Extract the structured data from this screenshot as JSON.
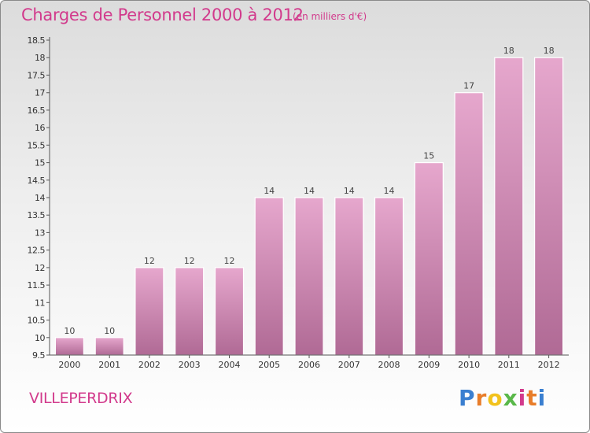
{
  "header": {
    "title": "Charges de Personnel 2000 à 2012",
    "subtitle": "(en milliers d'€)"
  },
  "footer": {
    "commune": "VILLEPERDRIX",
    "logo_text": "Proxiti",
    "logo_colors": [
      "#3a7fd0",
      "#e87d2a",
      "#f2c21c",
      "#59b849",
      "#d23a8c",
      "#e87d2a",
      "#3a7fd0"
    ]
  },
  "colors": {
    "bar_top": "#e6a7cd",
    "bar_bottom": "#b06a95",
    "title": "#d23a8c"
  },
  "chart_data": {
    "type": "bar",
    "categories": [
      "2000",
      "2001",
      "2002",
      "2003",
      "2004",
      "2005",
      "2006",
      "2007",
      "2008",
      "2009",
      "2010",
      "2011",
      "2012"
    ],
    "values": [
      10,
      10,
      12,
      12,
      12,
      14,
      14,
      14,
      14,
      15,
      17,
      18,
      18
    ],
    "value_labels": [
      "10",
      "10",
      "12",
      "12",
      "12",
      "14",
      "14",
      "14",
      "14",
      "15",
      "17",
      "18",
      "18"
    ],
    "ylim": [
      9.5,
      18.5
    ],
    "yticks": [
      9.5,
      10,
      10.5,
      11,
      11.5,
      12,
      12.5,
      13,
      13.5,
      14,
      14.5,
      15,
      15.5,
      16,
      16.5,
      17,
      17.5,
      18,
      18.5
    ],
    "ytick_labels": [
      "9.5",
      "10",
      "10.5",
      "11",
      "11.5",
      "12",
      "12.5",
      "13",
      "13.5",
      "14",
      "14.5",
      "15",
      "15.5",
      "16",
      "16.5",
      "17",
      "17.5",
      "18",
      "18.5"
    ],
    "grid": false,
    "title": "Charges de Personnel 2000 à 2012",
    "xlabel": "",
    "ylabel": ""
  }
}
